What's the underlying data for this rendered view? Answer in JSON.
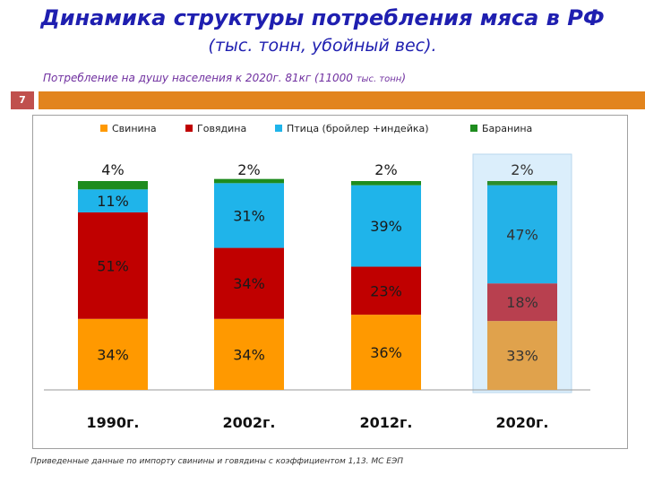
{
  "header": {
    "title": "Динамика структуры потребления мяса в РФ",
    "subtitle": "(тыс. тонн, убойный вес).",
    "note_main": "Потребление на душу населения к 2020г. 81кг (11000 ",
    "note_small": "тыс. тонн",
    "note_end": ")",
    "slide_number": "7"
  },
  "footer": {
    "text": "Приведенные данные по импорту свинины и говядины с коэффициентом 1,13. МС ЕЭП"
  },
  "colors": {
    "pork": "#ff9900",
    "beef": "#c00000",
    "poultry": "#1fb4ea",
    "lamb": "#1e8c1e",
    "pork_forecast": "#e0a24c",
    "beef_forecast": "#b8404f",
    "poultry_forecast": "#24b2e8",
    "lamb_forecast": "#2c8c2c",
    "forecast_bg": "#dbeefb"
  },
  "chart_data": {
    "type": "bar",
    "stacked": true,
    "percent": true,
    "legend_position": "top",
    "categories": [
      "1990г.",
      "2002г.",
      "2012г.",
      "2020г."
    ],
    "series": [
      {
        "name": "Свинина",
        "values": [
          34,
          34,
          36,
          33
        ],
        "labels": [
          "34%",
          "34%",
          "36%",
          "33%"
        ]
      },
      {
        "name": "Говядина",
        "values": [
          51,
          34,
          23,
          18
        ],
        "labels": [
          "51%",
          "34%",
          "23%",
          "18%"
        ]
      },
      {
        "name": "Птица (бройлер +индейка)",
        "values": [
          11,
          31,
          39,
          47
        ],
        "labels": [
          "11%",
          "31%",
          "39%",
          "47%"
        ]
      },
      {
        "name": "Баранина",
        "values": [
          4,
          2,
          2,
          2
        ],
        "labels": [
          "4%",
          "2%",
          "2%",
          "2%"
        ]
      }
    ],
    "highlighted_category": "2020г."
  }
}
